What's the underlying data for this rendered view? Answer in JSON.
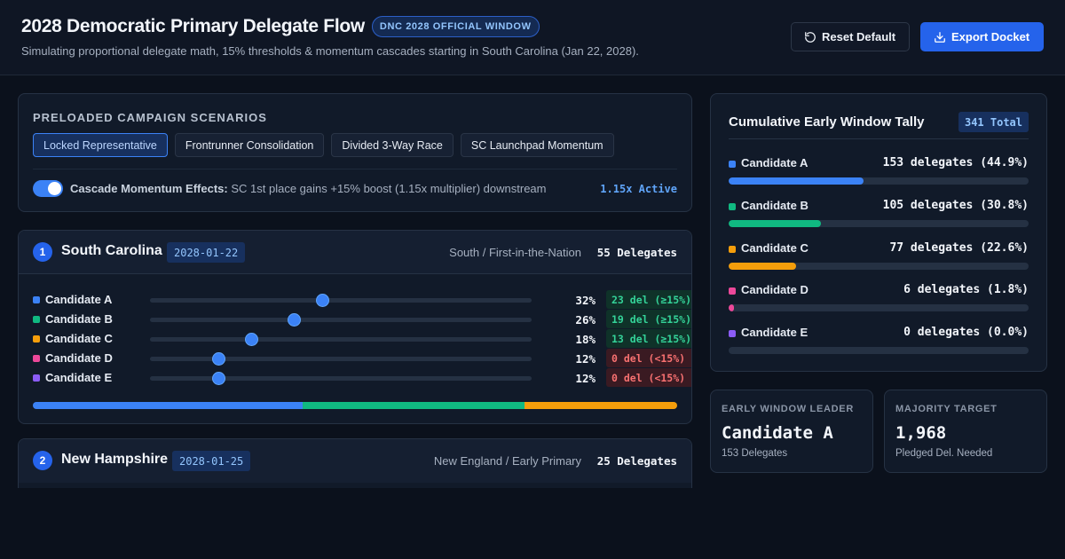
{
  "header": {
    "title": "2028 Democratic Primary Delegate Flow",
    "badge": "DNC 2028 OFFICIAL WINDOW",
    "subtitle": "Simulating proportional delegate math, 15% thresholds & momentum cascades starting in South Carolina (Jan 22, 2028).",
    "reset_label": "Reset Default",
    "export_label": "Export Docket"
  },
  "scenarios": {
    "heading": "PRELOADED CAMPAIGN SCENARIOS",
    "chips": [
      "Locked Representative",
      "Frontrunner Consolidation",
      "Divided 3-Way Race",
      "SC Launchpad Momentum"
    ],
    "active_index": 0,
    "cascade_label": "Cascade Momentum Effects:",
    "cascade_desc": "SC 1st place gains +15% boost (1.15x multiplier) downstream",
    "cascade_status": "1.15x Active",
    "cascade_enabled": true
  },
  "candidate_colors": {
    "Candidate A": "#3b82f6",
    "Candidate B": "#10b981",
    "Candidate C": "#f59e0b",
    "Candidate D": "#ec4899",
    "Candidate E": "#8b5cf6"
  },
  "states": [
    {
      "number": "1",
      "name": "South Carolina",
      "date": "2028-01-22",
      "region": "South / First-in-the-Nation",
      "delegates": "55 Delegates",
      "candidates": [
        {
          "name": "Candidate A",
          "pct": "32%",
          "slider": 0.45,
          "badge": "23 del (≥15%)",
          "qualified": true
        },
        {
          "name": "Candidate B",
          "pct": "26%",
          "slider": 0.377,
          "badge": "19 del (≥15%)",
          "qualified": true
        },
        {
          "name": "Candidate C",
          "pct": "18%",
          "slider": 0.265,
          "badge": "13 del (≥15%)",
          "qualified": true
        },
        {
          "name": "Candidate D",
          "pct": "12%",
          "slider": 0.18,
          "badge": "0 del (<15%)",
          "qualified": false
        },
        {
          "name": "Candidate E",
          "pct": "12%",
          "slider": 0.18,
          "badge": "0 del (<15%)",
          "qualified": false
        }
      ],
      "allocation": [
        {
          "name": "Candidate A",
          "delegates": 23
        },
        {
          "name": "Candidate B",
          "delegates": 19
        },
        {
          "name": "Candidate C",
          "delegates": 13
        }
      ]
    },
    {
      "number": "2",
      "name": "New Hampshire",
      "date": "2028-01-25",
      "region": "New England / Early Primary",
      "delegates": "25 Delegates"
    }
  ],
  "tally": {
    "title": "Cumulative Early Window Tally",
    "total": "341 Total",
    "rows": [
      {
        "name": "Candidate A",
        "value": "153 delegates (44.9%)",
        "share": 0.449
      },
      {
        "name": "Candidate B",
        "value": "105 delegates (30.8%)",
        "share": 0.308
      },
      {
        "name": "Candidate C",
        "value": "77 delegates (22.6%)",
        "share": 0.226
      },
      {
        "name": "Candidate D",
        "value": "6 delegates (1.8%)",
        "share": 0.018
      },
      {
        "name": "Candidate E",
        "value": "0 delegates (0.0%)",
        "share": 0.0
      }
    ]
  },
  "stats": {
    "leader": {
      "label": "EARLY WINDOW LEADER",
      "value": "Candidate A",
      "sub": "153 Delegates"
    },
    "majority": {
      "label": "MAJORITY TARGET",
      "value": "1,968",
      "sub": "Pledged Del. Needed"
    }
  }
}
